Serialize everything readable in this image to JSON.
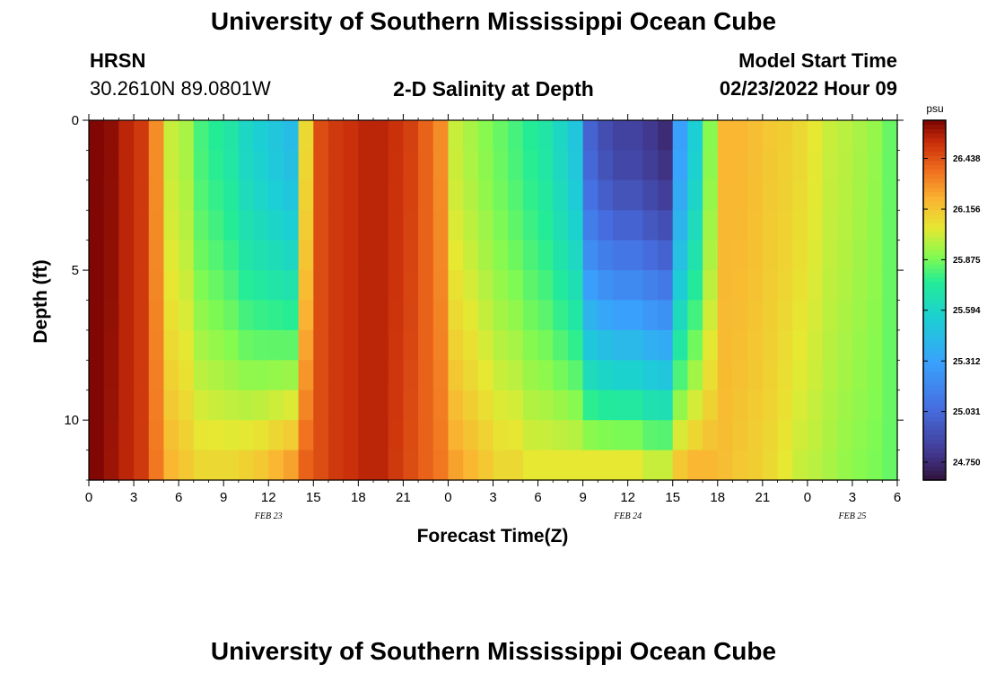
{
  "page": {
    "title_top": "University of Southern Mississippi Ocean Cube",
    "title_bottom": "University of Southern Mississippi Ocean Cube",
    "station_name": "HRSN",
    "station_coords": "30.2610N  89.0801W",
    "plot_title": "2-D Salinity at Depth",
    "model_start_label": "Model Start Time",
    "model_start_value": "02/23/2022 Hour 09"
  },
  "chart_data": {
    "type": "heatmap",
    "title": "2-D Salinity at Depth",
    "xlabel": "Forecast Time(Z)",
    "ylabel": "Depth (ft)",
    "x_ticks": [
      "0",
      "3",
      "6",
      "9",
      "12",
      "15",
      "18",
      "21",
      "0",
      "3",
      "6",
      "9",
      "12",
      "15",
      "18",
      "21",
      "0",
      "3",
      "6"
    ],
    "x_range_hours": [
      0,
      54
    ],
    "date_labels": [
      {
        "text": "FEB 23",
        "hour": 12
      },
      {
        "text": "FEB 24",
        "hour": 36
      },
      {
        "text": "FEB 25",
        "hour": 51
      }
    ],
    "y_ticks": [
      "0",
      "5",
      "10"
    ],
    "y_tick_values": [
      0,
      5,
      10
    ],
    "y_range_ft": [
      0,
      12
    ],
    "colorbar": {
      "unit": "psu",
      "ticks": [
        "26.438",
        "26.156",
        "25.875",
        "25.594",
        "25.312",
        "25.031",
        "24.750"
      ],
      "tick_values": [
        26.438,
        26.156,
        25.875,
        25.594,
        25.312,
        25.031,
        24.75
      ],
      "range": [
        24.65,
        26.65
      ]
    },
    "time_columns": 54,
    "depth_rows": 12,
    "surface_salinity_by_hour": [
      26.64,
      26.62,
      26.55,
      26.5,
      26.3,
      26.0,
      25.95,
      25.8,
      25.75,
      25.7,
      25.6,
      25.55,
      25.5,
      25.45,
      26.1,
      26.45,
      26.5,
      26.52,
      26.55,
      26.55,
      26.52,
      26.48,
      26.4,
      26.3,
      26.0,
      25.95,
      25.9,
      25.85,
      25.8,
      25.75,
      25.7,
      25.6,
      25.5,
      25.0,
      24.9,
      24.85,
      24.85,
      24.8,
      24.75,
      25.3,
      25.55,
      25.9,
      26.2,
      26.2,
      26.18,
      26.15,
      26.13,
      26.1,
      26.05,
      26.0,
      25.98,
      25.95,
      25.92,
      25.85
    ],
    "bottom_salinity_by_hour": [
      26.64,
      26.6,
      26.55,
      26.5,
      26.35,
      26.2,
      26.15,
      26.1,
      26.1,
      26.1,
      26.12,
      26.15,
      26.2,
      26.25,
      26.4,
      26.45,
      26.5,
      26.52,
      26.55,
      26.55,
      26.5,
      26.45,
      26.4,
      26.35,
      26.25,
      26.2,
      26.15,
      26.1,
      26.1,
      26.05,
      26.05,
      26.05,
      26.05,
      26.05,
      26.05,
      26.05,
      26.05,
      26.0,
      26.0,
      26.15,
      26.2,
      26.2,
      26.18,
      26.15,
      26.13,
      26.1,
      26.05,
      26.0,
      25.98,
      25.95,
      25.92,
      25.9,
      25.88,
      25.85
    ]
  }
}
